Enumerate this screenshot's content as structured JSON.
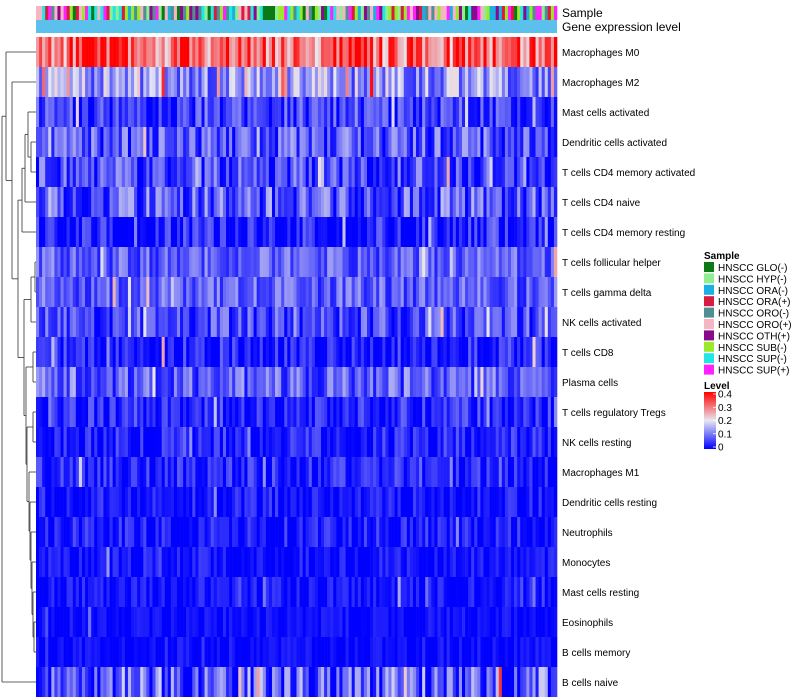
{
  "chart_data": {
    "type": "heatmap",
    "num_samples": 170,
    "rows": [
      {
        "label": "Macrophages M0",
        "mean": 0.32,
        "spread": 0.12
      },
      {
        "label": "Macrophages M2",
        "mean": 0.13,
        "spread": 0.09
      },
      {
        "label": "Mast cells activated",
        "mean": 0.05,
        "spread": 0.07
      },
      {
        "label": "Dendritic cells activated",
        "mean": 0.07,
        "spread": 0.08
      },
      {
        "label": "T cells CD4 memory activated",
        "mean": 0.06,
        "spread": 0.08
      },
      {
        "label": "T cells CD4 naive",
        "mean": 0.07,
        "spread": 0.09
      },
      {
        "label": "T cells CD4 memory resting",
        "mean": 0.02,
        "spread": 0.07
      },
      {
        "label": "T cells follicular helper",
        "mean": 0.08,
        "spread": 0.06
      },
      {
        "label": "T cells gamma delta",
        "mean": 0.08,
        "spread": 0.06
      },
      {
        "label": "NK cells activated",
        "mean": 0.06,
        "spread": 0.07
      },
      {
        "label": "T cells CD8",
        "mean": 0.02,
        "spread": 0.07
      },
      {
        "label": "Plasma cells",
        "mean": 0.08,
        "spread": 0.07
      },
      {
        "label": "T cells regulatory  Tregs",
        "mean": 0.03,
        "spread": 0.06
      },
      {
        "label": "NK cells resting",
        "mean": 0.02,
        "spread": 0.06
      },
      {
        "label": "Macrophages M1",
        "mean": 0.03,
        "spread": 0.05
      },
      {
        "label": "Dendritic cells resting",
        "mean": 0.01,
        "spread": 0.05
      },
      {
        "label": "Neutrophils",
        "mean": 0.02,
        "spread": 0.05
      },
      {
        "label": "Monocytes",
        "mean": 0.01,
        "spread": 0.04
      },
      {
        "label": "Mast cells resting",
        "mean": 0.01,
        "spread": 0.04
      },
      {
        "label": "Eosinophils",
        "mean": 0.005,
        "spread": 0.03
      },
      {
        "label": "B cells memory",
        "mean": 0.005,
        "spread": 0.03
      },
      {
        "label": "B cells naive",
        "mean": 0.06,
        "spread": 0.12
      }
    ],
    "annotations": {
      "sample_label": "Sample",
      "gene_expression_label": "Gene expression level",
      "gene_expression_color": "#5bc0eb"
    },
    "sample_legend": {
      "title": "Sample",
      "items": [
        {
          "label": "HNSCC GLO(-)",
          "color": "#0b7a16"
        },
        {
          "label": "HNSCC HYP(-)",
          "color": "#90ee90"
        },
        {
          "label": "HNSCC ORA(-)",
          "color": "#1ab0e6"
        },
        {
          "label": "HNSCC ORA(+)",
          "color": "#d81b40"
        },
        {
          "label": "HNSCC ORO(-)",
          "color": "#4f8f94"
        },
        {
          "label": "HNSCC ORO(+)",
          "color": "#f4b6c2"
        },
        {
          "label": "HNSCC OTH(+)",
          "color": "#8b0a8b"
        },
        {
          "label": "HNSCC SUB(-)",
          "color": "#9aea2b"
        },
        {
          "label": "HNSCC SUP(-)",
          "color": "#22e6e6"
        },
        {
          "label": "HNSCC SUP(+)",
          "color": "#ff22ff"
        }
      ]
    },
    "level_legend": {
      "title": "Level",
      "ticks": [
        "0.4",
        "0.3",
        "0.2",
        "0.1",
        "0"
      ],
      "tick_values": [
        0.4,
        0.3,
        0.2,
        0.1,
        0
      ],
      "range": [
        0,
        0.4
      ],
      "colors": {
        "low": "#0000ff",
        "mid": "#e8e8f0",
        "high": "#ff0000"
      }
    }
  }
}
